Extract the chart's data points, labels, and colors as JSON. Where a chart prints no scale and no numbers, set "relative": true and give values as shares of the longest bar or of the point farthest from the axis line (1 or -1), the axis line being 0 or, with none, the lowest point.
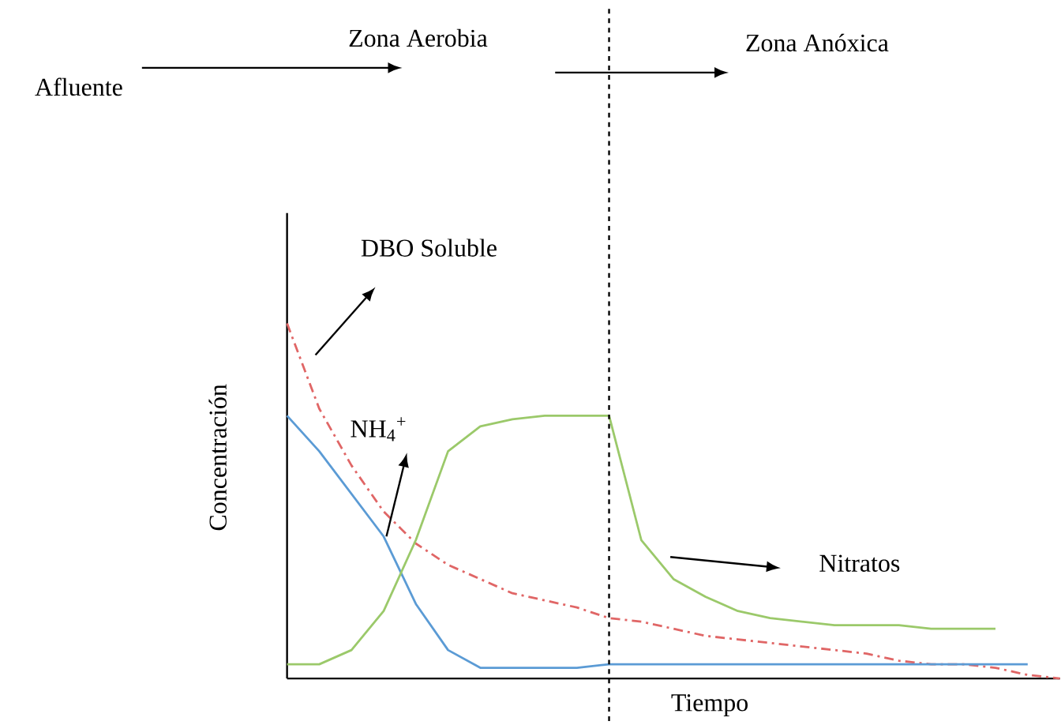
{
  "chart_data": {
    "type": "line",
    "relative": true,
    "xlabel": "Tiempo",
    "ylabel": "Concentración",
    "categories": [
      null,
      null,
      null,
      null,
      null,
      null,
      null,
      null,
      null,
      null,
      null,
      null,
      null,
      null,
      null,
      null,
      null,
      null,
      null,
      null,
      null,
      null,
      null,
      null,
      null
    ],
    "series": [
      {
        "color": "#e06666",
        "line_style": "dashdot",
        "values": [
          1,
          0.76,
          0.6,
          0.47,
          0.38,
          0.32,
          0.28,
          0.24,
          0.22,
          0.2,
          0.17,
          0.16,
          0.14,
          0.12,
          0.11,
          0.1,
          0.09,
          0.08,
          0.07,
          0.05,
          0.04,
          0.04,
          0.03,
          0.01,
          0
        ]
      },
      {
        "color": "#5b9bd5",
        "line_style": "solid",
        "values": [
          0.74,
          0.64,
          0.52,
          0.4,
          0.21,
          0.08,
          0.03,
          0.03,
          0.03,
          0.03,
          0.04,
          0.04,
          0.04,
          0.04,
          0.04,
          0.04,
          0.04,
          0.04,
          0.04,
          0.04,
          0.04,
          0.04,
          0.04,
          0.04,
          null
        ]
      },
      {
        "color": "#9bc96a",
        "line_style": "solid",
        "values": [
          0.04,
          0.04,
          0.08,
          0.19,
          0.39,
          0.64,
          0.71,
          0.73,
          0.74,
          0.74,
          0.74,
          0.39,
          0.28,
          0.23,
          0.19,
          0.17,
          0.16,
          0.15,
          0.15,
          0.15,
          0.14,
          0.14,
          0.14,
          null,
          null
        ]
      }
    ],
    "annotations": [
      "Afluente",
      "Zona Aerobia",
      "Zona Anóxica",
      "DBO Soluble",
      "NH$_{4}$$^{+}$",
      "Nitratos"
    ]
  }
}
